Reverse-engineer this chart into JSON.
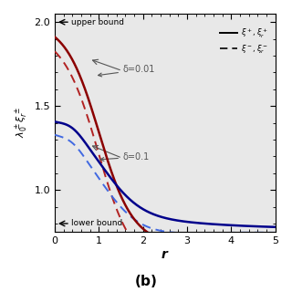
{
  "title": "(b)",
  "xlabel": "r",
  "xlim": [
    0,
    5
  ],
  "ylim": [
    0.75,
    2.05
  ],
  "yticks": [
    1.0,
    1.5,
    2.0
  ],
  "xticks": [
    0,
    1,
    2,
    3,
    4,
    5
  ],
  "upper_bound": 2.0,
  "lower_bound": 0.8,
  "annotation_delta01": "δ=0.01",
  "annotation_delta1": "δ=0.1",
  "color_red_solid": "#8B0000",
  "color_red_dashed": "#B22222",
  "color_blue_solid": "#00008B",
  "color_blue_dashed": "#4169E1",
  "bg_color": "#e8e8e8"
}
